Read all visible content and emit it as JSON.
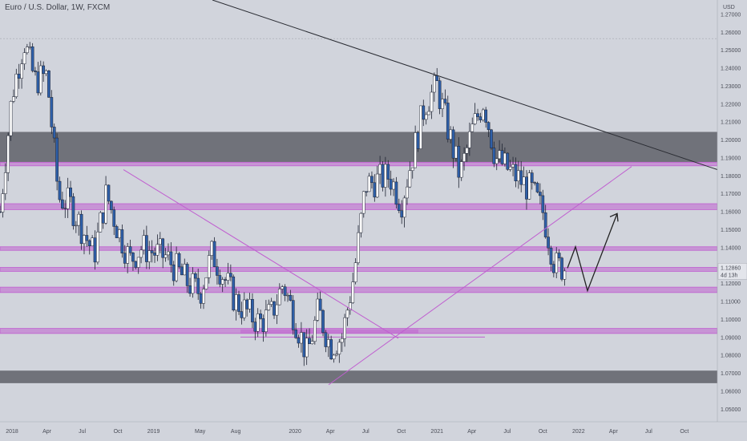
{
  "header": {
    "symbol_title": "Euro / U.S. Dollar, 1W, FXCM"
  },
  "price_scale": {
    "currency_label": "USD"
  },
  "last_price": {
    "value": "1.12860",
    "countdown": "4d 13h"
  },
  "colors": {
    "background": "#d1d4dc",
    "zone_dark": "#5f6068",
    "zone_purple": "#c05fd0",
    "trendline": "#2a2c33",
    "triangle_line": "#c05fd0",
    "candle_up": "#ffffff",
    "candle_down": "#2e5fa8",
    "projection": "#222222"
  },
  "chart_data": {
    "type": "candlestick",
    "title": "Euro / U.S. Dollar, 1W, FXCM",
    "x_ticks": [
      "2018",
      "Apr",
      "Jul",
      "Oct",
      "2019",
      "May",
      "Aug",
      "2020",
      "Apr",
      "Jul",
      "Oct",
      "2021",
      "Apr",
      "Jul",
      "Oct",
      "2022",
      "Apr",
      "Jul",
      "Oct"
    ],
    "y_ticks": [
      "1.27000",
      "1.26000",
      "1.25000",
      "1.24000",
      "1.23000",
      "1.22000",
      "1.21000",
      "1.20000",
      "1.19000",
      "1.18000",
      "1.17000",
      "1.16000",
      "1.15000",
      "1.14000",
      "1.13000",
      "1.12000",
      "1.11000",
      "1.10000",
      "1.09000",
      "1.08000",
      "1.07000",
      "1.06000",
      "1.05000"
    ],
    "ylim": [
      1.043,
      1.278
    ],
    "zones": [
      {
        "kind": "dark",
        "from": 1.1875,
        "to": 1.2045
      },
      {
        "kind": "dark",
        "from": 1.0645,
        "to": 1.0715
      },
      {
        "kind": "purple",
        "from": 1.1856,
        "to": 1.1876
      },
      {
        "kind": "purple",
        "from": 1.1612,
        "to": 1.1645
      },
      {
        "kind": "purple",
        "from": 1.1385,
        "to": 1.1405
      },
      {
        "kind": "purple",
        "from": 1.1268,
        "to": 1.129
      },
      {
        "kind": "purple",
        "from": 1.115,
        "to": 1.118
      },
      {
        "kind": "purple",
        "from": 1.0922,
        "to": 1.095
      }
    ],
    "key_levels": {
      "2018_high": 1.2555,
      "2020_low": 1.0636,
      "2021_high": 1.2349,
      "current": 1.1286
    },
    "projection_path": [
      1.1286,
      1.1405,
      1.116,
      1.159
    ],
    "series": [
      {
        "name": "EURUSD weekly",
        "anchors": [
          [
            "2017-12",
            1.16
          ],
          [
            "2018-01",
            1.225
          ],
          [
            "2018-02",
            1.255
          ],
          [
            "2018-03",
            1.233
          ],
          [
            "2018-04",
            1.236
          ],
          [
            "2018-05",
            1.168
          ],
          [
            "2018-06",
            1.164
          ],
          [
            "2018-08",
            1.136
          ],
          [
            "2018-09",
            1.17
          ],
          [
            "2018-10",
            1.15
          ],
          [
            "2018-11",
            1.133
          ],
          [
            "2018-12",
            1.14
          ],
          [
            "2019-02",
            1.135
          ],
          [
            "2019-04",
            1.12
          ],
          [
            "2019-05",
            1.115
          ],
          [
            "2019-06",
            1.137
          ],
          [
            "2019-08",
            1.11
          ],
          [
            "2019-10",
            1.098
          ],
          [
            "2019-11",
            1.103
          ],
          [
            "2019-12",
            1.12
          ],
          [
            "2020-02",
            1.08
          ],
          [
            "2020-03",
            1.105
          ],
          [
            "2020-04",
            1.085
          ],
          [
            "2020-05",
            1.09
          ],
          [
            "2020-06",
            1.125
          ],
          [
            "2020-07",
            1.175
          ],
          [
            "2020-09",
            1.18
          ],
          [
            "2020-10",
            1.165
          ],
          [
            "2020-12",
            1.22
          ],
          [
            "2021-01",
            1.23
          ],
          [
            "2021-03",
            1.18
          ],
          [
            "2021-04",
            1.205
          ],
          [
            "2021-05",
            1.222
          ],
          [
            "2021-06",
            1.19
          ],
          [
            "2021-08",
            1.178
          ],
          [
            "2021-09",
            1.172
          ],
          [
            "2021-10",
            1.16
          ],
          [
            "2021-11",
            1.13
          ],
          [
            "2021-12",
            1.1286
          ]
        ]
      }
    ]
  }
}
